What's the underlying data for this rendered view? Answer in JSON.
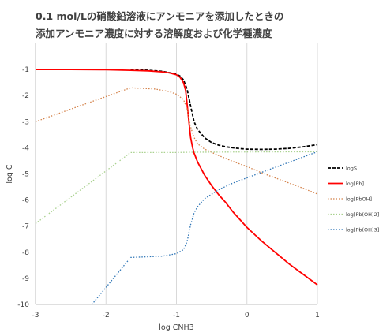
{
  "chart_data": {
    "type": "line",
    "title_lines": [
      "0.1 mol/Lの硝酸鉛溶液にアンモニアを添加したときの",
      "添加アンモニア濃度に対する溶解度および化学種濃度"
    ],
    "xlabel": "log CNH3",
    "ylabel": "log C",
    "xlim": [
      -3,
      1
    ],
    "ylim": [
      -10,
      0
    ],
    "xticks": [
      "-3",
      "-2",
      "-1",
      "0",
      "1"
    ],
    "yticks": [
      "-1",
      "-2",
      "-3",
      "-4",
      "-5",
      "-6",
      "-7",
      "-8",
      "-9",
      "-10"
    ],
    "grid": "vertical",
    "legend_position": "right",
    "series": [
      {
        "name": "logS",
        "color": "#000000",
        "dash": "4,2",
        "width": 1.8,
        "x": [
          -1.65,
          -1.4,
          -1.2,
          -1.1,
          -1.0,
          -0.95,
          -0.9,
          -0.85,
          -0.8,
          -0.75,
          -0.7,
          -0.6,
          -0.5,
          -0.4,
          -0.3,
          -0.2,
          -0.1,
          0.0,
          0.2,
          0.4,
          0.6,
          0.8,
          1.0
        ],
        "y": [
          -1.0,
          -1.03,
          -1.07,
          -1.12,
          -1.18,
          -1.25,
          -1.4,
          -1.75,
          -2.4,
          -3.0,
          -3.3,
          -3.62,
          -3.8,
          -3.9,
          -3.96,
          -4.0,
          -4.03,
          -4.05,
          -4.06,
          -4.05,
          -4.02,
          -3.96,
          -3.88
        ]
      },
      {
        "name": "log[Pb]",
        "color": "#ff0000",
        "dash": "",
        "width": 1.8,
        "x": [
          -3.0,
          -2.5,
          -2.0,
          -1.65,
          -1.4,
          -1.2,
          -1.1,
          -1.0,
          -0.95,
          -0.9,
          -0.87,
          -0.85,
          -0.82,
          -0.8,
          -0.77,
          -0.75,
          -0.7,
          -0.6,
          -0.5,
          -0.4,
          -0.3,
          -0.2,
          -0.1,
          0.0,
          0.2,
          0.4,
          0.6,
          0.8,
          1.0
        ],
        "y": [
          -1.0,
          -1.0,
          -1.01,
          -1.03,
          -1.05,
          -1.09,
          -1.13,
          -1.2,
          -1.3,
          -1.5,
          -1.8,
          -2.3,
          -3.1,
          -3.6,
          -4.0,
          -4.2,
          -4.55,
          -5.05,
          -5.45,
          -5.8,
          -6.1,
          -6.45,
          -6.75,
          -7.05,
          -7.55,
          -8.0,
          -8.45,
          -8.85,
          -9.25
        ]
      },
      {
        "name": "log[PbOH]",
        "color": "#d4824a",
        "dash": "1.5,2",
        "width": 1.3,
        "x": [
          -3.0,
          -1.65,
          -1.3,
          -1.1,
          -1.0,
          -0.9,
          -0.85,
          -0.8,
          -0.75,
          -0.7,
          -0.6,
          -0.4,
          -0.2,
          0.0,
          0.2,
          0.4,
          0.6,
          0.8,
          1.0
        ],
        "y": [
          -3.0,
          -1.7,
          -1.75,
          -1.85,
          -1.95,
          -2.15,
          -2.5,
          -3.2,
          -3.6,
          -3.85,
          -4.05,
          -4.3,
          -4.52,
          -4.72,
          -4.95,
          -5.15,
          -5.35,
          -5.55,
          -5.77
        ]
      },
      {
        "name": "log[Pb(OH)2]",
        "color": "#a9d18e",
        "dash": "1.5,2",
        "width": 1.3,
        "x": [
          -3.0,
          -1.65,
          -1.0,
          -0.8,
          0.0,
          1.0
        ],
        "y": [
          -6.9,
          -4.18,
          -4.18,
          -4.17,
          -4.16,
          -4.15
        ]
      },
      {
        "name": "log[Pb(OH)3]",
        "color": "#2e75b6",
        "dash": "1.5,2",
        "width": 1.3,
        "x": [
          -2.2,
          -1.65,
          -1.2,
          -1.0,
          -0.9,
          -0.85,
          -0.8,
          -0.75,
          -0.7,
          -0.6,
          -0.4,
          -0.2,
          0.0,
          0.2,
          0.4,
          0.6,
          0.8,
          1.0
        ],
        "y": [
          -10.0,
          -8.2,
          -8.15,
          -8.05,
          -7.9,
          -7.6,
          -6.95,
          -6.5,
          -6.25,
          -5.95,
          -5.6,
          -5.35,
          -5.15,
          -4.95,
          -4.75,
          -4.55,
          -4.35,
          -4.15
        ]
      }
    ]
  }
}
